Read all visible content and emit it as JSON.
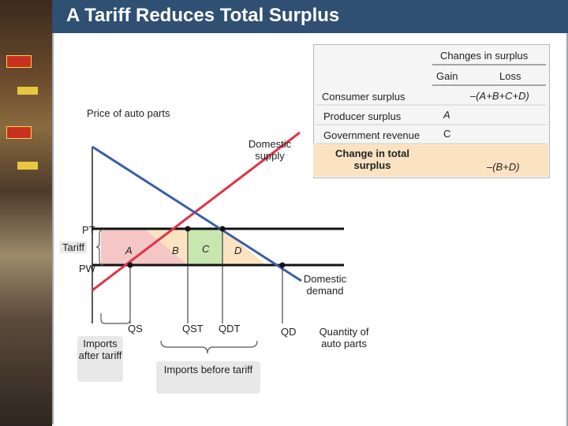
{
  "title": "A Tariff Reduces Total Surplus",
  "table": {
    "header": "Changes in surplus",
    "gain": "Gain",
    "loss": "Loss",
    "rows": [
      {
        "label": "Consumer surplus",
        "gain": "",
        "loss": "–(A+B+C+D)"
      },
      {
        "label": "Producer surplus",
        "gain": "A",
        "loss": ""
      },
      {
        "label": "Government revenue",
        "gain": "C",
        "loss": ""
      }
    ],
    "total_label": "Change in total surplus",
    "total_loss": "–(B+D)"
  },
  "axes": {
    "y_label": "Price of auto parts",
    "x_label": "Quantity of auto parts"
  },
  "curves": {
    "supply": "Domestic supply",
    "demand": "Domestic demand"
  },
  "prices": {
    "pt": "PT",
    "pw": "PW",
    "tariff": "Tariff"
  },
  "areas": {
    "a": "A",
    "b": "B",
    "c": "C",
    "d": "D"
  },
  "quantities": {
    "qs": "QS",
    "qst": "QST",
    "qdt": "QDT",
    "qd": "QD"
  },
  "notes": {
    "imports_after": "Imports after tariff",
    "imports_before": "Imports before tariff"
  },
  "colors": {
    "title_bg": "#2f4f73",
    "supply": "#e0334a",
    "demand": "#3b5ea8",
    "area_a": "#f4c6c6",
    "area_c": "#c8e6b0",
    "area_bd": "#fbe3c2"
  }
}
